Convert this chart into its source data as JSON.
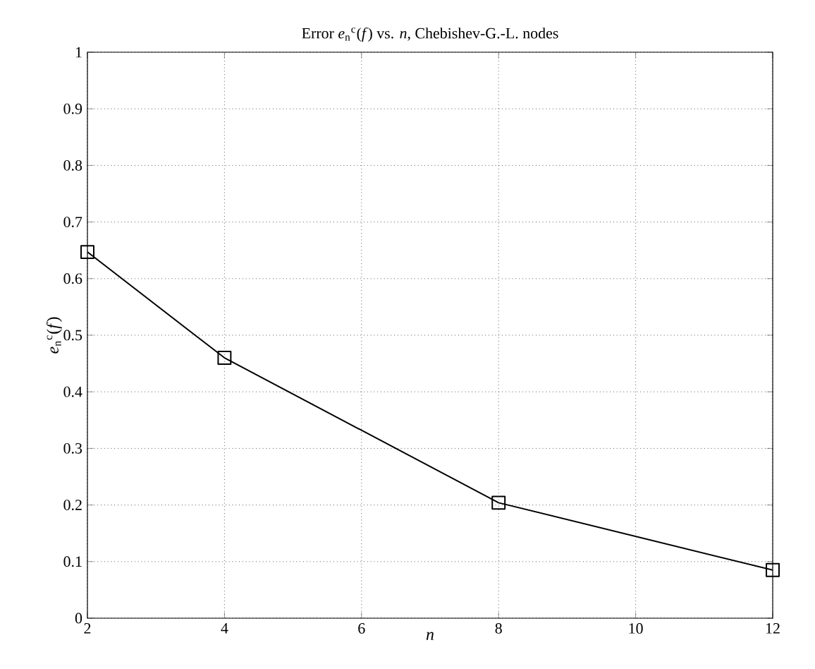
{
  "chart_data": {
    "type": "line",
    "title": "Error *e*$_{n}$$^{c}$(*f*) vs. *n*, Chebishev-G.-L. nodes",
    "xlabel": "*n*",
    "ylabel": "*e*$_{n}$$^{c}$(*f*)",
    "x": [
      2,
      4,
      8,
      12
    ],
    "series": [
      {
        "color": "#000000",
        "values": [
          0.647,
          0.46,
          0.204,
          0.085
        ]
      }
    ],
    "xlim": [
      2,
      12
    ],
    "xticks": [
      2,
      4,
      6,
      8,
      10,
      12
    ],
    "ylim": [
      0,
      1
    ],
    "yticks": [
      0,
      0.1,
      0.2,
      0.3,
      0.4,
      0.5,
      0.6,
      0.7,
      0.8,
      0.9,
      1
    ],
    "grid": true,
    "marker": "square",
    "line_style": "solid"
  }
}
